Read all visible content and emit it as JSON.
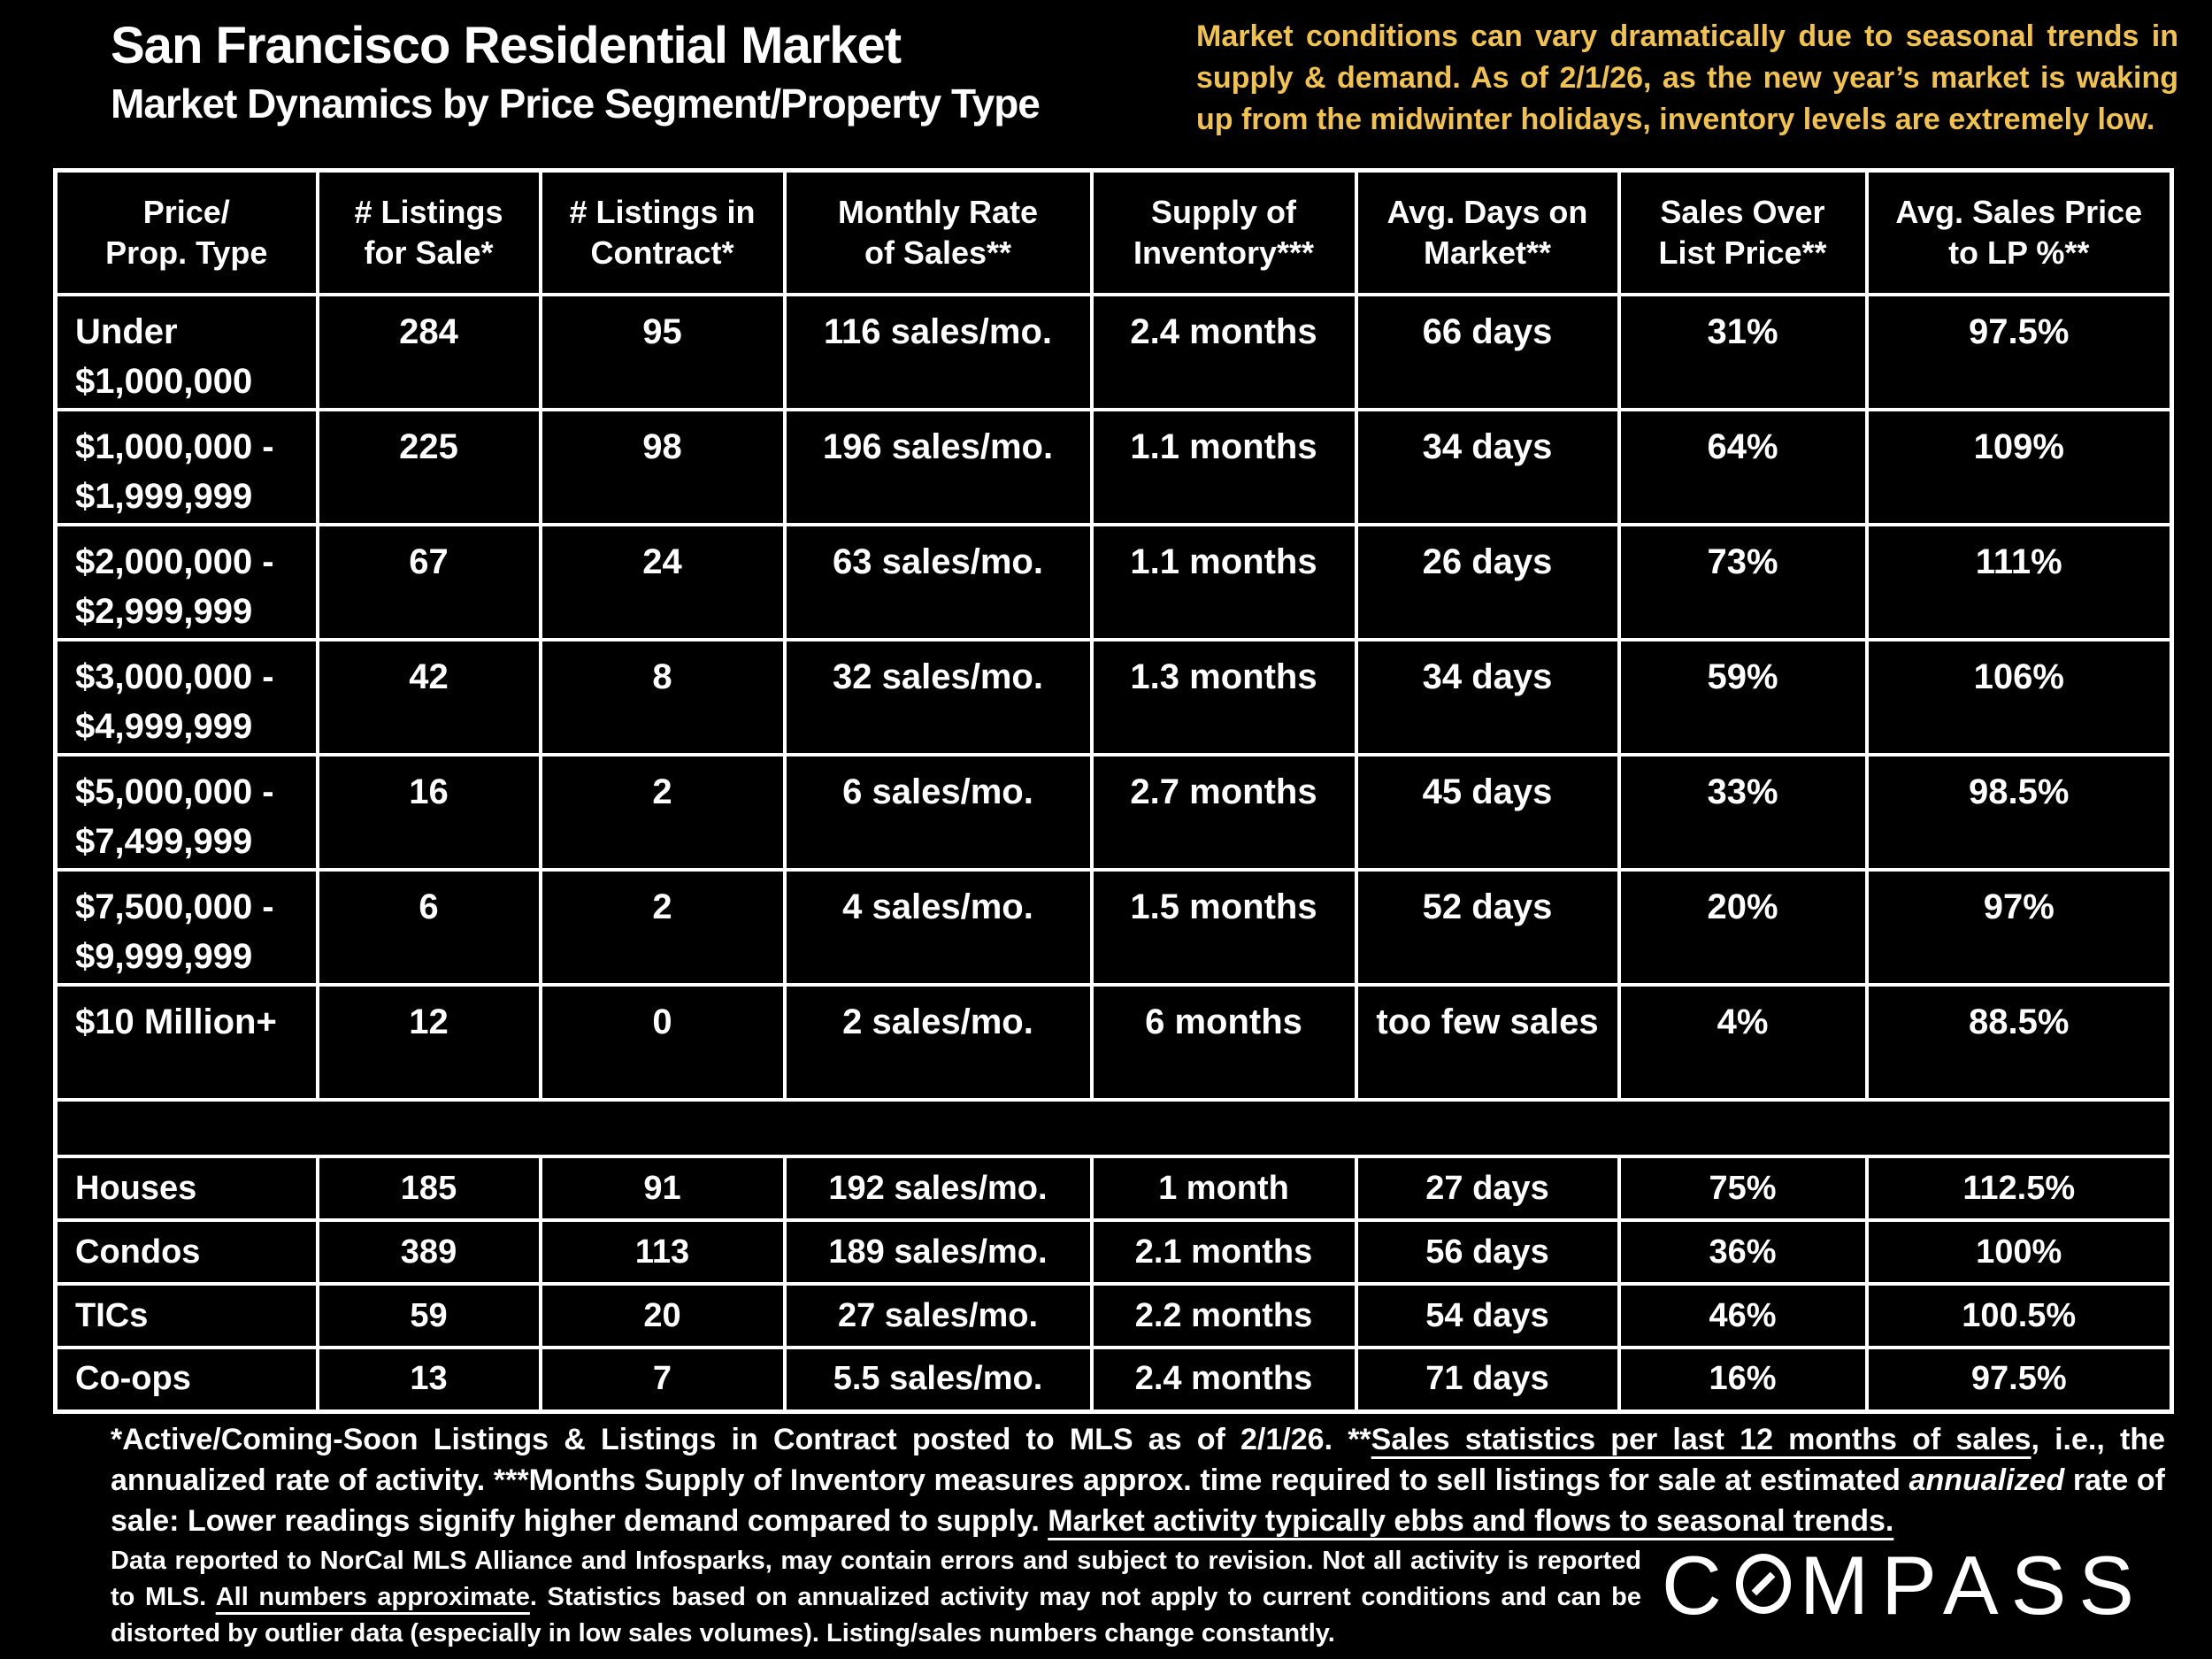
{
  "header": {
    "title": "San Francisco Residential Market",
    "subtitle": "Market Dynamics by Price Segment/Property Type",
    "note": "Market conditions can vary dramatically due to seasonal trends in supply & demand. As of 2/1/26, as the new year’s market is waking up from the midwinter holidays, inventory levels are extremely low."
  },
  "colors": {
    "background": "#000000",
    "text": "#FFFFFF",
    "note_yellow": "#F2C34C"
  },
  "table": {
    "headers": [
      [
        "Price/",
        "Prop. Type"
      ],
      [
        "# Listings",
        "for Sale*"
      ],
      [
        "# Listings in",
        "Contract*"
      ],
      [
        "Monthly Rate",
        "of Sales**"
      ],
      [
        "Supply of",
        "Inventory***"
      ],
      [
        "Avg. Days on",
        "Market**"
      ],
      [
        "Sales Over",
        "List Price**"
      ],
      [
        "Avg. Sales Price",
        "to LP %**"
      ]
    ],
    "price_rows": [
      {
        "label": [
          "Under",
          "$1,000,000"
        ],
        "cells": [
          "284",
          "95",
          "116 sales/mo.",
          "2.4 months",
          "66 days",
          "31%",
          "97.5%"
        ]
      },
      {
        "label": [
          "$1,000,000 -",
          "$1,999,999"
        ],
        "cells": [
          "225",
          "98",
          "196 sales/mo.",
          "1.1 months",
          "34 days",
          "64%",
          "109%"
        ]
      },
      {
        "label": [
          "$2,000,000 -",
          "$2,999,999"
        ],
        "cells": [
          "67",
          "24",
          "63 sales/mo.",
          "1.1 months",
          "26 days",
          "73%",
          "111%"
        ]
      },
      {
        "label": [
          "$3,000,000 -",
          "$4,999,999"
        ],
        "cells": [
          "42",
          "8",
          "32 sales/mo.",
          "1.3 months",
          "34 days",
          "59%",
          "106%"
        ]
      },
      {
        "label": [
          "$5,000,000 -",
          "$7,499,999"
        ],
        "cells": [
          "16",
          "2",
          "6 sales/mo.",
          "2.7 months",
          "45 days",
          "33%",
          "98.5%"
        ]
      },
      {
        "label": [
          "$7,500,000 -",
          "$9,999,999"
        ],
        "cells": [
          "6",
          "2",
          "4 sales/mo.",
          "1.5 months",
          "52 days",
          "20%",
          "97%"
        ]
      },
      {
        "label": [
          "$10 Million+"
        ],
        "cells": [
          "12",
          "0",
          "2 sales/mo.",
          "6 months",
          "too few sales",
          "4%",
          "88.5%"
        ]
      }
    ],
    "property_rows": [
      {
        "label": "Houses",
        "cells": [
          "185",
          "91",
          "192 sales/mo.",
          "1 month",
          "27 days",
          "75%",
          "112.5%"
        ]
      },
      {
        "label": "Condos",
        "cells": [
          "389",
          "113",
          "189 sales/mo.",
          "2.1 months",
          "56 days",
          "36%",
          "100%"
        ]
      },
      {
        "label": "TICs",
        "cells": [
          "59",
          "20",
          "27 sales/mo.",
          "2.2 months",
          "54 days",
          "46%",
          "100.5%"
        ]
      },
      {
        "label": "Co-ops",
        "cells": [
          "13",
          "7",
          "5.5 sales/mo.",
          "2.4 months",
          "71 days",
          "16%",
          "97.5%"
        ]
      }
    ]
  },
  "footnotes": {
    "para1": [
      {
        "text": "*Active/Coming-Soon Listings & Listings in Contract posted to MLS as of 2/1/26. **",
        "style": "plain"
      },
      {
        "text": "Sales statistics per last 12 months of sales",
        "style": "underline"
      },
      {
        "text": ", i.e., the annualized rate of activity.  ***Months Supply of Inventory measures approx. time required to sell listings for sale at estimated ",
        "style": "plain"
      },
      {
        "text": "annualized",
        "style": "italic"
      },
      {
        "text": " rate of sale:  Lower readings signify higher demand compared to supply. ",
        "style": "plain"
      },
      {
        "text": "Market activity typically ebbs and flows to seasonal trends.",
        "style": "underline"
      }
    ],
    "para2": [
      {
        "text": "Data reported to NorCal MLS Alliance and Infosparks, may contain errors and subject to revision.  Not all activity is reported to MLS. ",
        "style": "plain"
      },
      {
        "text": "All numbers approximate",
        "style": "underline"
      },
      {
        "text": ". Statistics based on annualized activity may not apply to current conditions and can be distorted by outlier data (especially in low sales volumes). Listing/sales numbers change constantly.",
        "style": "plain"
      }
    ]
  },
  "logo": {
    "brand": "Compass",
    "left": "C",
    "right": "MPASS"
  }
}
